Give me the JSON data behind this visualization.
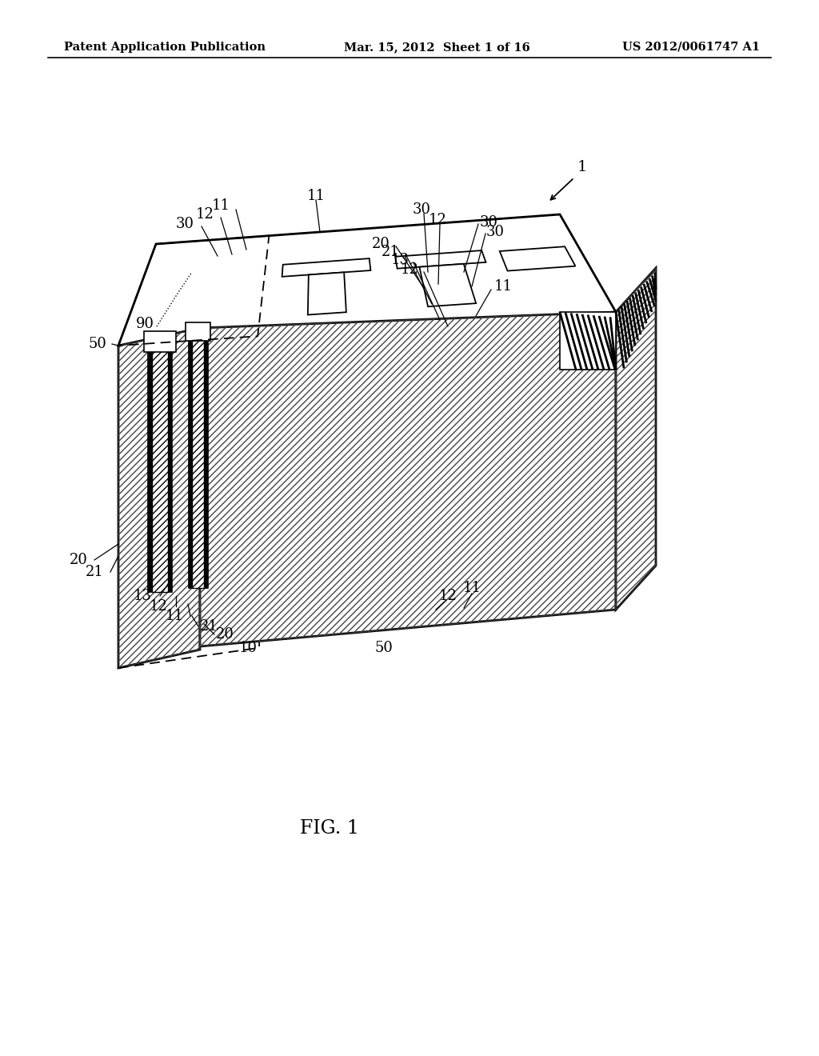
{
  "title_left": "Patent Application Publication",
  "title_mid": "Mar. 15, 2012  Sheet 1 of 16",
  "title_right": "US 2012/0061747 A1",
  "fig_label": "FIG. 1",
  "bg_color": "#ffffff"
}
